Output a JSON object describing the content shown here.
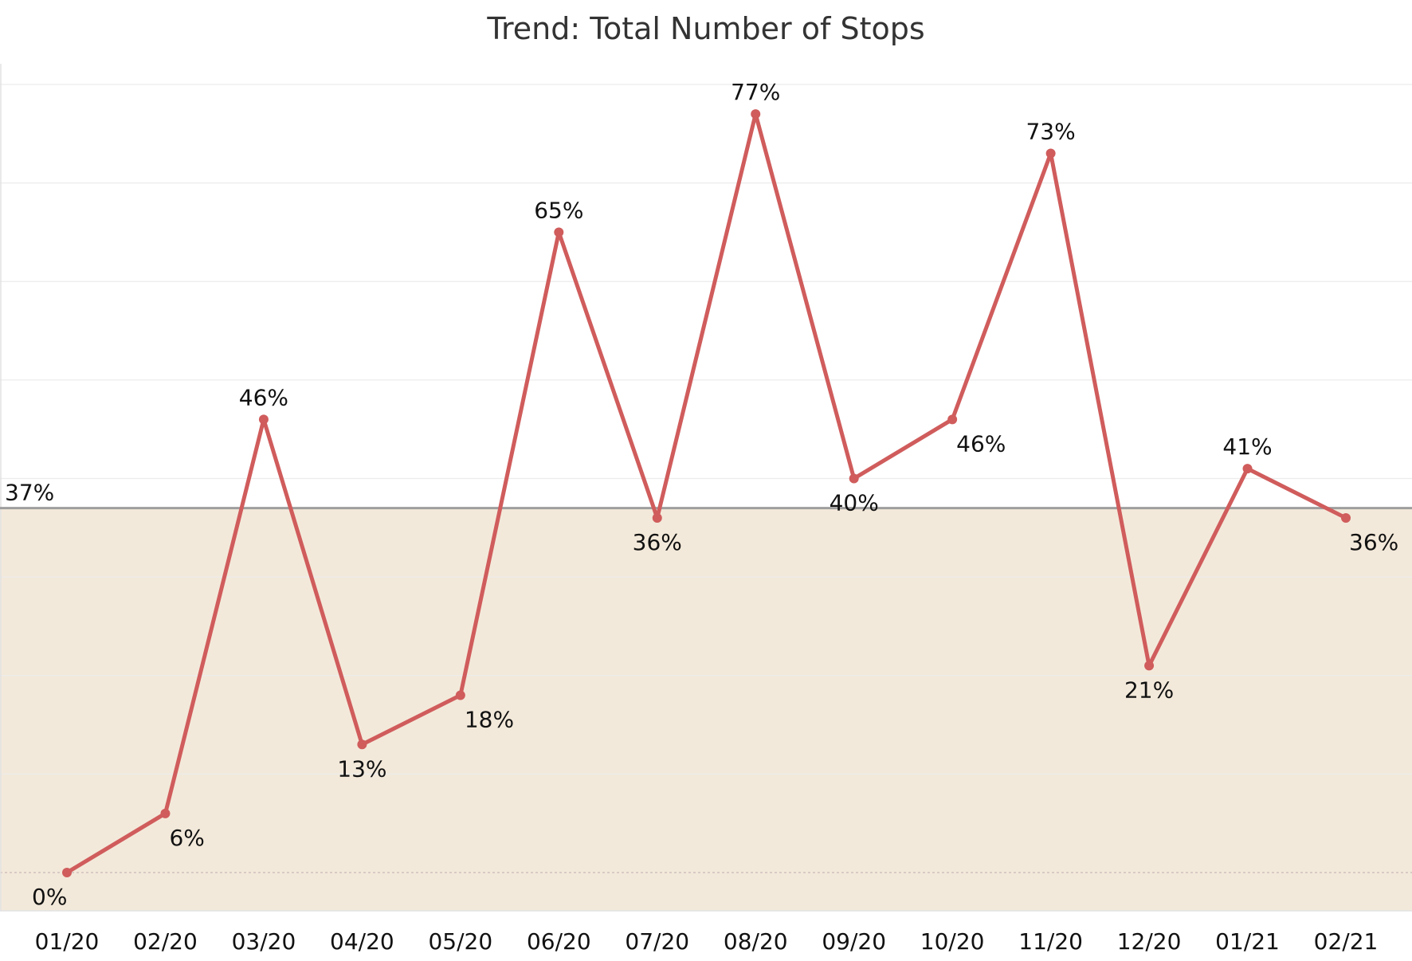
{
  "chart_data": {
    "type": "line",
    "title": "Trend: Total Number of Stops",
    "xlabel": "",
    "ylabel": "",
    "categories": [
      "01/20",
      "02/20",
      "03/20",
      "04/20",
      "05/20",
      "06/20",
      "07/20",
      "08/20",
      "09/20",
      "10/20",
      "11/20",
      "12/20",
      "01/21",
      "02/21"
    ],
    "series": [
      {
        "values": [
          0,
          6,
          46,
          13,
          18,
          65,
          36,
          77,
          40,
          46,
          73,
          21,
          41,
          36
        ],
        "labels": [
          "0%",
          "6%",
          "46%",
          "13%",
          "18%",
          "65%",
          "36%",
          "77%",
          "40%",
          "46%",
          "73%",
          "21%",
          "41%",
          "36%"
        ],
        "label_position": [
          "below",
          "below",
          "above",
          "below",
          "below",
          "above",
          "below",
          "above",
          "below",
          "below",
          "above",
          "below",
          "above",
          "below"
        ],
        "color": "#d05c5c"
      }
    ],
    "reference_line": {
      "value": 37,
      "label": "37%",
      "band_color": "#f3e9da",
      "line_color": "#9e9e9e"
    },
    "ylim": [
      -4,
      80
    ],
    "y_gridlines": [
      0,
      10,
      20,
      30,
      40,
      50,
      60,
      70,
      80
    ],
    "grid": true,
    "y_tick_labels_shown": false,
    "legend": "none"
  }
}
